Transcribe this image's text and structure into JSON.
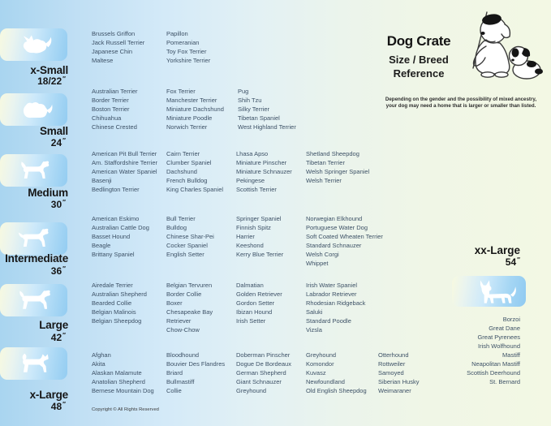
{
  "header": {
    "title": "Dog Crate",
    "subtitle_line1": "Size / Breed",
    "subtitle_line2": "Reference",
    "note_line1": "Depending on the gender and the possibility of mixed ancestry,",
    "note_line2": "your dog may need a home that is larger or smaller than listed."
  },
  "inch_mark": "″",
  "sidebar": {
    "sizes": [
      {
        "label": "x-Small",
        "dimension": "18/22",
        "icon": "x-small-dog-silhouette-icon"
      },
      {
        "label": "Small",
        "dimension": "24",
        "icon": "small-dog-silhouette-icon"
      },
      {
        "label": "Medium",
        "dimension": "30",
        "icon": "medium-dog-silhouette-icon"
      },
      {
        "label": "Intermediate",
        "dimension": "36",
        "icon": "intermediate-dog-silhouette-icon"
      },
      {
        "label": "Large",
        "dimension": "42",
        "icon": "large-dog-silhouette-icon"
      },
      {
        "label": "x-Large",
        "dimension": "48",
        "icon": "x-large-dog-silhouette-icon"
      }
    ]
  },
  "breeds": {
    "x_small": {
      "columns": [
        [
          "Brussels Griffon",
          "Jack Russell Terrier",
          "Japanese Chin",
          "Maltese"
        ],
        [
          "Papillon",
          "Pomeranian",
          "Toy Fox Terrier",
          "Yorkshire Terrier"
        ]
      ]
    },
    "small": {
      "columns": [
        [
          "Australian Terrier",
          "Border Terrier",
          "Boston Terrier",
          "Chihuahua",
          "Chinese Crested"
        ],
        [
          "Fox Terrier",
          "Manchester Terrier",
          "Miniature Dachshund",
          "Miniature Poodle",
          "Norwich Terrier"
        ],
        [
          "Pug",
          "Shih Tzu",
          "Silky Terrier",
          "Tibetan Spaniel",
          "West Highland Terrier"
        ]
      ]
    },
    "medium": {
      "columns": [
        [
          "American Pit Bull Terrier",
          "Am. Staffordshire Terrier",
          "American Water Spaniel",
          "Basenji",
          "Bedlington Terrier"
        ],
        [
          "Cairn Terrier",
          "Clumber Spaniel",
          "Dachshund",
          "French Bulldog",
          "King Charles Spaniel"
        ],
        [
          "Lhasa Apso",
          "Miniature Pinscher",
          "Miniature Schnauzer",
          "Pekingese",
          "Scottish Terrier"
        ],
        [
          "Shetland Sheepdog",
          "Tibetan Terrier",
          "Welsh Springer Spaniel",
          "Welsh Terrier"
        ]
      ]
    },
    "intermediate": {
      "columns": [
        [
          "American Eskimo",
          "Australian Cattle Dog",
          "Basset Hound",
          "Beagle",
          "Brittany Spaniel"
        ],
        [
          "Bull Terrier",
          "Bulldog",
          "Chinese Shar-Pei",
          "Cocker Spaniel",
          "English Setter"
        ],
        [
          "Springer Spaniel",
          "Finnish Spitz",
          "Harrier",
          "Keeshond",
          "Kerry Blue Terrier"
        ],
        [
          "Norwegian Elkhound",
          "Portuguese Water Dog",
          "Soft Coated Wheaten Terrier",
          "Standard Schnauzer",
          "Welsh Corgi",
          "Whippet"
        ]
      ]
    },
    "large": {
      "columns": [
        [
          "Airedale Terrier",
          "Australian Shepherd",
          "Bearded Collie",
          "Belgian Malinois",
          "Belgian Sheepdog"
        ],
        [
          "Belgian Tervuren",
          "Border Collie",
          "Boxer",
          "Chesapeake Bay\nRetriever",
          "Chow-Chow"
        ],
        [
          "Dalmatian",
          "Golden Retriever",
          "Gordon Setter",
          "Ibizan Hound",
          "Irish Setter"
        ],
        [
          "Irish Water Spaniel",
          "Labrador Retriever",
          "Rhodesian Ridgeback",
          "Saluki",
          "Standard Poodle",
          "Vizsla"
        ]
      ]
    },
    "x_large": {
      "columns": [
        [
          "Afghan",
          "Akita",
          "Alaskan Malamute",
          "Anatolian Shepherd",
          "Bernese Mountain Dog"
        ],
        [
          "Bloodhound",
          "Bouvier Des Flandres",
          "Briard",
          "Bullmastiff",
          "Collie"
        ],
        [
          "Doberman Pinscher",
          "Dogue De Bordeaux",
          "German Shepherd",
          "Giant Schnauzer",
          "Greyhound"
        ],
        [
          "Greyhound",
          "Komondor",
          "Kuvasz",
          "Newfoundland",
          "Old English Sheepdog"
        ],
        [
          "Otterhound",
          "Rottweiler",
          "Samoyed",
          "Siberian Husky",
          "Weimaraner"
        ]
      ]
    }
  },
  "xx_large": {
    "label": "xx-Large",
    "dimension": "54",
    "icon": "great-dane-silhouette-icon",
    "breeds": [
      "Borzoi",
      "Great Dane",
      "Great Pyrenees",
      "Irish Wolfhound",
      "Mastiff",
      "Neapolitan Mastiff",
      "Scottish Deerhound",
      "St. Bernard"
    ]
  },
  "footer": {
    "copyright": "Copyright © All Rights Reserved"
  },
  "colors": {
    "background_blue": "#a9d5f0",
    "background_green": "#f3f8e4",
    "panel_blue": "#93ccf1",
    "panel_cream": "#f7f9e0",
    "breed_text": "#3d5166",
    "label_text": "#161616"
  }
}
